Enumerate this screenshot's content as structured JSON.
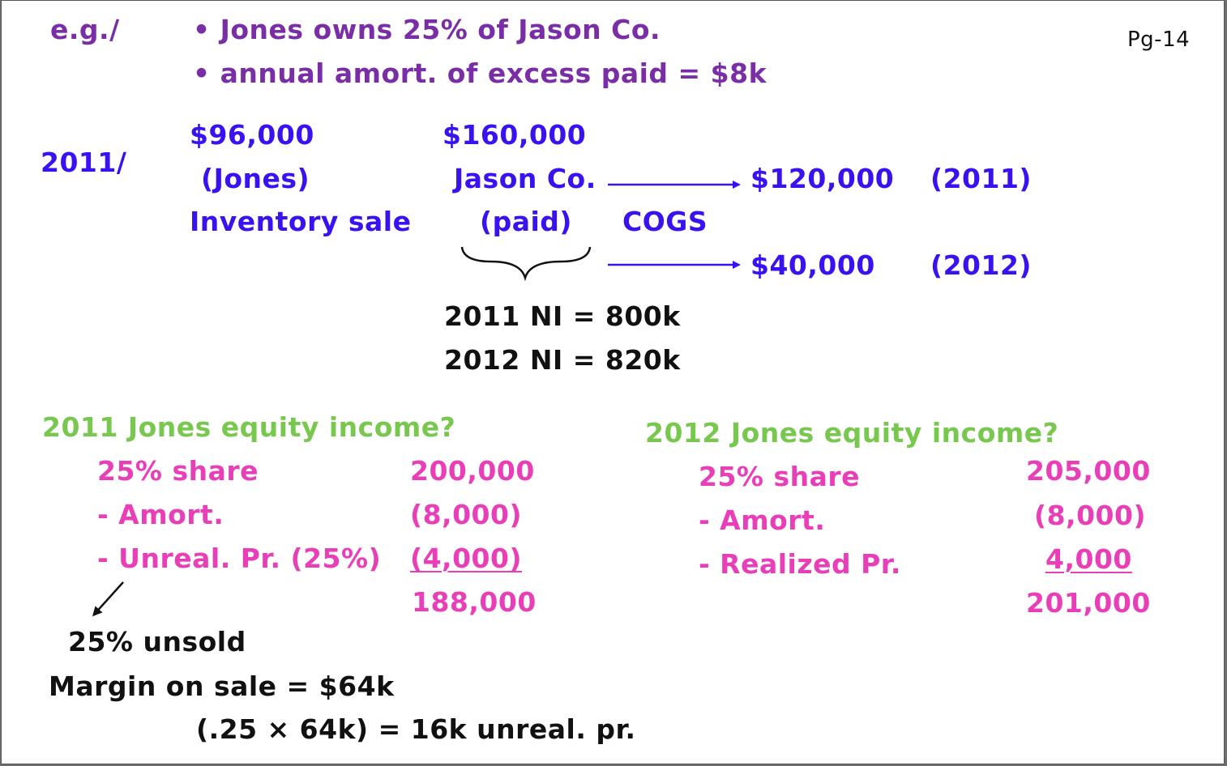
{
  "header": {
    "eg_label": "e.g./",
    "bullet_1": "• Jones owns 25% of Jason Co.",
    "bullet_2": "• annual amort. of excess paid = $8k",
    "page_number": "Pg-14"
  },
  "scenario": {
    "year_label": "2011/",
    "jones_cost": "$96,000",
    "jones_label": "(Jones)",
    "inventory_sale": "Inventory sale",
    "jason_price": "$160,000",
    "jason_label": "Jason Co.",
    "paid_label": "(paid)",
    "cogs_label": "COGS",
    "cogs_2011_amount": "$120,000",
    "cogs_2011_year": "(2011)",
    "cogs_2012_amount": "$40,000",
    "cogs_2012_year": "(2012)",
    "ni_2011": "2011 NI = 800k",
    "ni_2012": "2012 NI = 820k"
  },
  "left_calc": {
    "title": "2011 Jones equity income?",
    "rows": [
      {
        "label": "25% share",
        "value": "200,000"
      },
      {
        "label": "- Amort.",
        "value": "(8,000)"
      },
      {
        "label": "- Unreal. Pr. (25%)",
        "value": "(4,000)"
      }
    ],
    "total": "188,000"
  },
  "right_calc": {
    "title": "2012 Jones equity income?",
    "rows": [
      {
        "label": "25% share",
        "value": "205,000"
      },
      {
        "label": "- Amort.",
        "value": "(8,000)"
      },
      {
        "label": "- Realized Pr.",
        "value": "4,000"
      }
    ],
    "total": "201,000"
  },
  "notes": {
    "unsold": "25% unsold",
    "margin": "Margin on sale = $64k",
    "calc": "(.25 × 64k) = 16k unreal. pr."
  },
  "colors": {
    "purple": "#7a2ea6",
    "blue": "#3a12f0",
    "black": "#111111",
    "green": "#78c850",
    "pink": "#e83fb8"
  }
}
